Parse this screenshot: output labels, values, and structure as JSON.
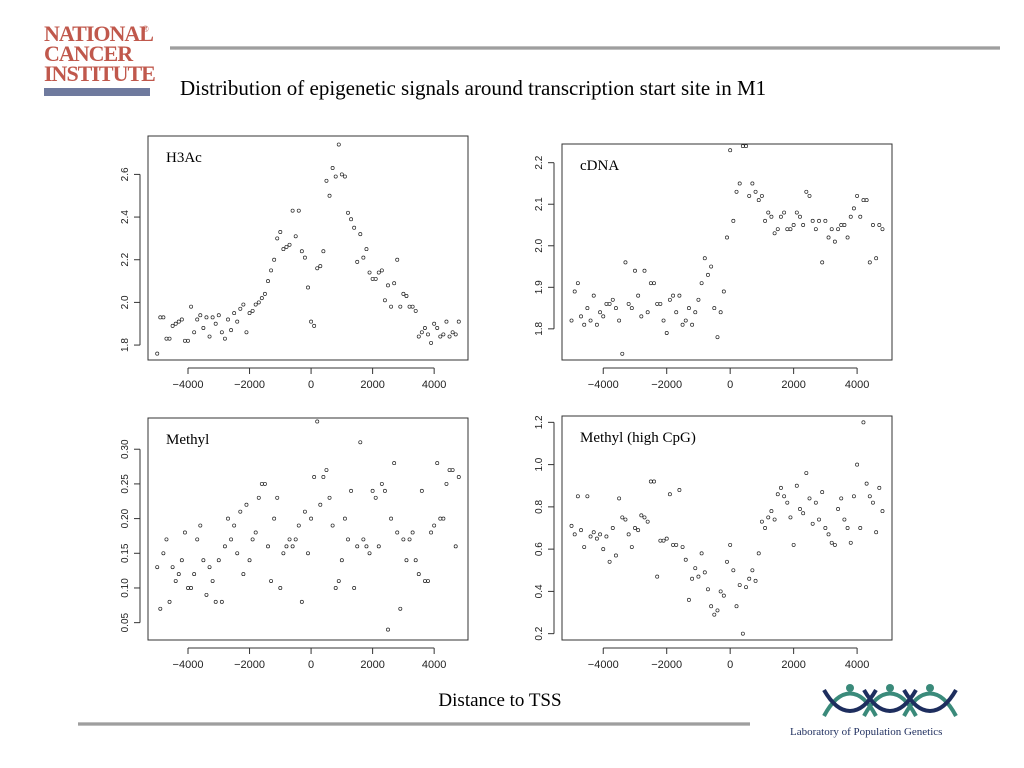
{
  "header": {
    "logo_text": [
      "NATIONAL",
      "CANCER",
      "INSTITUTE"
    ],
    "logo_reg": "®",
    "title": "Distribution of epigenetic signals around transcription start site in M1"
  },
  "footer": {
    "xlabel": "Distance to TSS",
    "lab_name": "Laboratory of Population Genetics"
  },
  "colors": {
    "nci_red": "#c0584c",
    "nci_bar": "#6f7a9e",
    "lpg_navy": "#1e2e5e",
    "lpg_teal": "#3a8a7a"
  },
  "chart_data": [
    {
      "type": "scatter",
      "title": "H3Ac",
      "xlim": [
        -5300,
        5100
      ],
      "ylim": [
        1.73,
        2.78
      ],
      "xticks": [
        -4000,
        -2000,
        0,
        2000,
        4000
      ],
      "xtick_labels": [
        "−4000",
        "−2000",
        "0",
        "2000",
        "4000"
      ],
      "yticks": [
        1.8,
        2.0,
        2.2,
        2.4,
        2.6
      ],
      "ytick_labels": [
        "1.8",
        "2.0",
        "2.2",
        "2.4",
        "2.6"
      ],
      "x": [
        -5000,
        -4900,
        -4800,
        -4700,
        -4600,
        -4500,
        -4400,
        -4300,
        -4200,
        -4100,
        -4000,
        -3900,
        -3800,
        -3700,
        -3600,
        -3500,
        -3400,
        -3300,
        -3200,
        -3100,
        -3000,
        -2900,
        -2800,
        -2700,
        -2600,
        -2500,
        -2400,
        -2300,
        -2200,
        -2100,
        -2000,
        -1900,
        -1800,
        -1700,
        -1600,
        -1500,
        -1400,
        -1300,
        -1200,
        -1100,
        -1000,
        -900,
        -800,
        -700,
        -600,
        -500,
        -400,
        -300,
        -200,
        -100,
        0,
        100,
        200,
        300,
        400,
        500,
        600,
        700,
        800,
        900,
        1000,
        1100,
        1200,
        1300,
        1400,
        1500,
        1600,
        1700,
        1800,
        1900,
        2000,
        2100,
        2200,
        2300,
        2400,
        2500,
        2600,
        2700,
        2800,
        2900,
        3000,
        3100,
        3200,
        3300,
        3400,
        3500,
        3600,
        3700,
        3800,
        3900,
        4000,
        4100,
        4200,
        4300,
        4400,
        4500,
        4600,
        4700,
        4800
      ],
      "y": [
        1.76,
        1.93,
        1.93,
        1.83,
        1.83,
        1.89,
        1.9,
        1.91,
        1.92,
        1.82,
        1.82,
        1.98,
        1.86,
        1.92,
        1.94,
        1.88,
        1.93,
        1.84,
        1.93,
        1.9,
        1.94,
        1.86,
        1.83,
        1.92,
        1.87,
        1.95,
        1.91,
        1.97,
        1.99,
        1.86,
        1.95,
        1.96,
        1.99,
        2.0,
        2.02,
        2.04,
        2.1,
        2.15,
        2.2,
        2.3,
        2.33,
        2.25,
        2.26,
        2.27,
        2.43,
        2.31,
        2.43,
        2.24,
        2.21,
        2.07,
        1.91,
        1.89,
        2.16,
        2.17,
        2.24,
        2.57,
        2.5,
        2.63,
        2.59,
        2.74,
        2.6,
        2.59,
        2.42,
        2.39,
        2.35,
        2.19,
        2.32,
        2.21,
        2.25,
        2.14,
        2.11,
        2.11,
        2.14,
        2.15,
        2.01,
        2.08,
        1.98,
        2.09,
        2.2,
        1.98,
        2.04,
        2.03,
        1.98,
        1.98,
        1.96,
        1.84,
        1.86,
        1.88,
        1.85,
        1.81,
        1.9,
        1.88,
        1.84,
        1.85,
        1.91,
        1.84,
        1.86,
        1.85,
        1.91
      ]
    },
    {
      "type": "scatter",
      "title": "cDNA",
      "xlim": [
        -5300,
        5100
      ],
      "ylim": [
        1.725,
        2.245
      ],
      "xticks": [
        -4000,
        -2000,
        0,
        2000,
        4000
      ],
      "xtick_labels": [
        "−4000",
        "−2000",
        "0",
        "2000",
        "4000"
      ],
      "yticks": [
        1.8,
        1.9,
        2.0,
        2.1,
        2.2
      ],
      "ytick_labels": [
        "1.8",
        "1.9",
        "2.0",
        "2.1",
        "2.2"
      ],
      "x": [
        -5000,
        -4900,
        -4800,
        -4700,
        -4600,
        -4500,
        -4400,
        -4300,
        -4200,
        -4100,
        -4000,
        -3900,
        -3800,
        -3700,
        -3600,
        -3500,
        -3400,
        -3300,
        -3200,
        -3100,
        -3000,
        -2900,
        -2800,
        -2700,
        -2600,
        -2500,
        -2400,
        -2300,
        -2200,
        -2100,
        -2000,
        -1900,
        -1800,
        -1700,
        -1600,
        -1500,
        -1400,
        -1300,
        -1200,
        -1100,
        -1000,
        -900,
        -800,
        -700,
        -600,
        -500,
        -400,
        -300,
        -200,
        -100,
        0,
        100,
        200,
        300,
        400,
        500,
        600,
        700,
        800,
        900,
        1000,
        1100,
        1200,
        1300,
        1400,
        1500,
        1600,
        1700,
        1800,
        1900,
        2000,
        2100,
        2200,
        2300,
        2400,
        2500,
        2600,
        2700,
        2800,
        2900,
        3000,
        3100,
        3200,
        3300,
        3400,
        3500,
        3600,
        3700,
        3800,
        3900,
        4000,
        4100,
        4200,
        4300,
        4400,
        4500,
        4600,
        4700,
        4800
      ],
      "y": [
        1.82,
        1.89,
        1.91,
        1.83,
        1.81,
        1.85,
        1.82,
        1.88,
        1.81,
        1.84,
        1.83,
        1.86,
        1.86,
        1.87,
        1.85,
        1.82,
        1.74,
        1.96,
        1.86,
        1.85,
        1.94,
        1.88,
        1.83,
        1.94,
        1.84,
        1.91,
        1.91,
        1.86,
        1.86,
        1.82,
        1.79,
        1.87,
        1.88,
        1.84,
        1.88,
        1.81,
        1.82,
        1.85,
        1.81,
        1.84,
        1.87,
        1.91,
        1.97,
        1.93,
        1.95,
        1.85,
        1.78,
        1.84,
        1.89,
        2.02,
        2.23,
        2.06,
        2.13,
        2.15,
        2.24,
        2.24,
        2.12,
        2.15,
        2.13,
        2.11,
        2.12,
        2.06,
        2.08,
        2.07,
        2.03,
        2.04,
        2.07,
        2.08,
        2.04,
        2.04,
        2.05,
        2.08,
        2.07,
        2.05,
        2.13,
        2.12,
        2.06,
        2.04,
        2.06,
        1.96,
        2.06,
        2.02,
        2.04,
        2.01,
        2.04,
        2.05,
        2.05,
        2.02,
        2.07,
        2.09,
        2.12,
        2.07,
        2.11,
        2.11,
        1.96,
        2.05,
        1.97,
        2.05,
        2.04
      ]
    },
    {
      "type": "scatter",
      "title": "Methyl",
      "xlim": [
        -5300,
        5100
      ],
      "ylim": [
        0.025,
        0.345
      ],
      "xticks": [
        -4000,
        -2000,
        0,
        2000,
        4000
      ],
      "xtick_labels": [
        "−4000",
        "−2000",
        "0",
        "2000",
        "4000"
      ],
      "yticks": [
        0.05,
        0.1,
        0.15,
        0.2,
        0.25,
        0.3
      ],
      "ytick_labels": [
        "0.05",
        "0.10",
        "0.15",
        "0.20",
        "0.25",
        "0.30"
      ],
      "x": [
        -5000,
        -4900,
        -4800,
        -4700,
        -4600,
        -4500,
        -4400,
        -4300,
        -4200,
        -4100,
        -4000,
        -3900,
        -3800,
        -3700,
        -3600,
        -3500,
        -3400,
        -3300,
        -3200,
        -3100,
        -3000,
        -2900,
        -2800,
        -2700,
        -2600,
        -2500,
        -2400,
        -2300,
        -2200,
        -2100,
        -2000,
        -1900,
        -1800,
        -1700,
        -1600,
        -1500,
        -1400,
        -1300,
        -1200,
        -1100,
        -1000,
        -900,
        -800,
        -700,
        -600,
        -500,
        -400,
        -300,
        -200,
        -100,
        0,
        100,
        200,
        300,
        400,
        500,
        600,
        700,
        800,
        900,
        1000,
        1100,
        1200,
        1300,
        1400,
        1500,
        1600,
        1700,
        1800,
        1900,
        2000,
        2100,
        2200,
        2300,
        2400,
        2500,
        2600,
        2700,
        2800,
        2900,
        3000,
        3100,
        3200,
        3300,
        3400,
        3500,
        3600,
        3700,
        3800,
        3900,
        4000,
        4100,
        4200,
        4300,
        4400,
        4500,
        4600,
        4700,
        4800
      ],
      "y": [
        0.13,
        0.07,
        0.15,
        0.17,
        0.08,
        0.13,
        0.11,
        0.12,
        0.14,
        0.18,
        0.1,
        0.1,
        0.12,
        0.17,
        0.19,
        0.14,
        0.09,
        0.13,
        0.11,
        0.08,
        0.14,
        0.08,
        0.16,
        0.2,
        0.17,
        0.19,
        0.15,
        0.21,
        0.12,
        0.22,
        0.14,
        0.17,
        0.18,
        0.23,
        0.25,
        0.25,
        0.16,
        0.11,
        0.2,
        0.23,
        0.1,
        0.15,
        0.16,
        0.17,
        0.16,
        0.17,
        0.19,
        0.08,
        0.21,
        0.15,
        0.2,
        0.26,
        0.34,
        0.22,
        0.26,
        0.27,
        0.23,
        0.19,
        0.1,
        0.11,
        0.14,
        0.2,
        0.17,
        0.24,
        0.1,
        0.16,
        0.31,
        0.17,
        0.16,
        0.15,
        0.24,
        0.23,
        0.16,
        0.25,
        0.24,
        0.04,
        0.2,
        0.28,
        0.18,
        0.07,
        0.17,
        0.14,
        0.17,
        0.18,
        0.14,
        0.12,
        0.24,
        0.11,
        0.11,
        0.18,
        0.19,
        0.28,
        0.2,
        0.2,
        0.25,
        0.27,
        0.27,
        0.16,
        0.26
      ]
    },
    {
      "type": "scatter",
      "title": "Methyl (high CpG)",
      "xlim": [
        -5300,
        5100
      ],
      "ylim": [
        0.17,
        1.23
      ],
      "xticks": [
        -4000,
        -2000,
        0,
        2000,
        4000
      ],
      "xtick_labels": [
        "−4000",
        "−2000",
        "0",
        "2000",
        "4000"
      ],
      "yticks": [
        0.2,
        0.4,
        0.6,
        0.8,
        1.0,
        1.2
      ],
      "ytick_labels": [
        "0.2",
        "0.4",
        "0.6",
        "0.8",
        "1.0",
        "1.2"
      ],
      "x": [
        -5000,
        -4900,
        -4800,
        -4700,
        -4600,
        -4500,
        -4400,
        -4300,
        -4200,
        -4100,
        -4000,
        -3900,
        -3800,
        -3700,
        -3600,
        -3500,
        -3400,
        -3300,
        -3200,
        -3100,
        -3000,
        -2900,
        -2800,
        -2700,
        -2600,
        -2500,
        -2400,
        -2300,
        -2200,
        -2100,
        -2000,
        -1900,
        -1800,
        -1700,
        -1600,
        -1500,
        -1400,
        -1300,
        -1200,
        -1100,
        -1000,
        -900,
        -800,
        -700,
        -600,
        -500,
        -400,
        -300,
        -200,
        -100,
        0,
        100,
        200,
        300,
        400,
        500,
        600,
        700,
        800,
        900,
        1000,
        1100,
        1200,
        1300,
        1400,
        1500,
        1600,
        1700,
        1800,
        1900,
        2000,
        2100,
        2200,
        2300,
        2400,
        2500,
        2600,
        2700,
        2800,
        2900,
        3000,
        3100,
        3200,
        3300,
        3400,
        3500,
        3600,
        3700,
        3800,
        3900,
        4000,
        4100,
        4200,
        4300,
        4400,
        4500,
        4600,
        4700,
        4800
      ],
      "y": [
        0.71,
        0.67,
        0.85,
        0.69,
        0.61,
        0.85,
        0.66,
        0.68,
        0.65,
        0.67,
        0.6,
        0.66,
        0.54,
        0.7,
        0.57,
        0.84,
        0.75,
        0.74,
        0.67,
        0.61,
        0.7,
        0.69,
        0.76,
        0.75,
        0.73,
        0.92,
        0.92,
        0.47,
        0.64,
        0.64,
        0.65,
        0.86,
        0.62,
        0.62,
        0.88,
        0.61,
        0.55,
        0.36,
        0.46,
        0.51,
        0.47,
        0.58,
        0.49,
        0.41,
        0.33,
        0.29,
        0.31,
        0.4,
        0.38,
        0.54,
        0.62,
        0.5,
        0.33,
        0.43,
        0.2,
        0.42,
        0.46,
        0.5,
        0.45,
        0.58,
        0.73,
        0.7,
        0.75,
        0.78,
        0.74,
        0.86,
        0.89,
        0.85,
        0.82,
        0.75,
        0.62,
        0.9,
        0.79,
        0.77,
        0.96,
        0.84,
        0.72,
        0.82,
        0.74,
        0.87,
        0.7,
        0.67,
        0.63,
        0.62,
        0.79,
        0.84,
        0.74,
        0.7,
        0.63,
        0.85,
        1.0,
        0.7,
        1.2,
        0.91,
        0.85,
        0.82,
        0.68,
        0.89,
        0.78
      ]
    }
  ]
}
